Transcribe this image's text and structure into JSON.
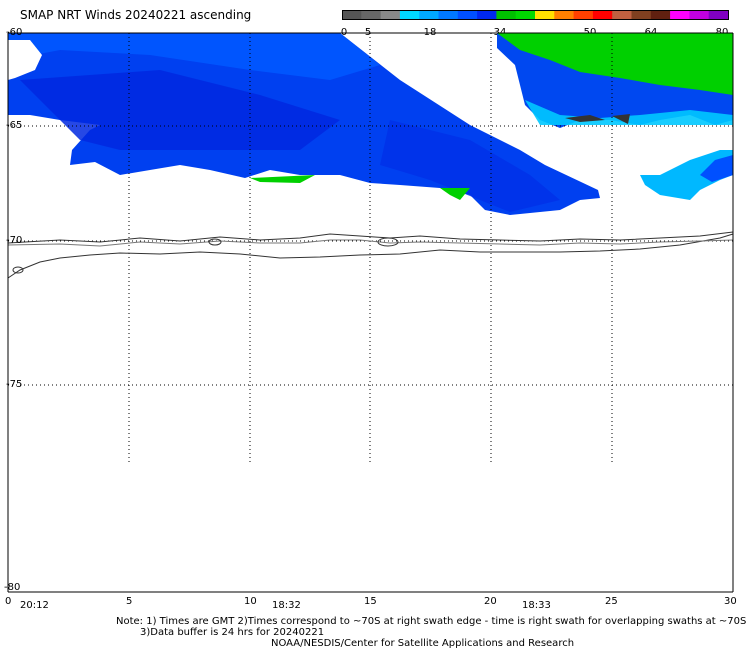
{
  "header": {
    "title": "SMAP NRT Winds 20240221 ascending"
  },
  "colorbar": {
    "labels": [
      "0",
      "5",
      "18",
      "34",
      "50",
      "64",
      "80"
    ],
    "colors": [
      "#555555",
      "#666666",
      "#888888",
      "#00d8ff",
      "#00a8ff",
      "#0078ff",
      "#0050ff",
      "#0028f0",
      "#00c000",
      "#00d800",
      "#ffe000",
      "#ff8000",
      "#ff4000",
      "#ff0000",
      "#c06040",
      "#804020",
      "#602010",
      "#ff00ff",
      "#c000e0",
      "#8000c0"
    ]
  },
  "axes": {
    "lat_labels": [
      "-60",
      "-65",
      "-70",
      "-75",
      "-80"
    ],
    "lon_labels": [
      "0",
      "5",
      "10",
      "15",
      "20",
      "25",
      "30"
    ],
    "times": [
      "20:12",
      "18:32",
      "18:33"
    ]
  },
  "notes": {
    "line1": "Note: 1) Times are GMT 2)Times correspond to ~70S at right swath edge - time is right swath for overlapping swaths at ~70S",
    "line2": "3)Data buffer is 24 hrs for 20240221",
    "line3": "NOAA/NESDIS/Center for Satellite Applications and Research"
  },
  "colors": {
    "wind_blue_dark": "#0030e0",
    "wind_blue": "#0060ff",
    "wind_cyan": "#00c8ff",
    "wind_green": "#00d000"
  }
}
